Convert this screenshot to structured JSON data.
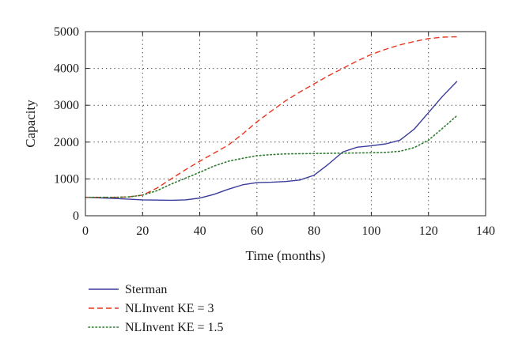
{
  "chart_data": {
    "type": "line",
    "xlabel": "Time (months)",
    "ylabel": "Capacity",
    "xlim": [
      0,
      140
    ],
    "ylim": [
      0,
      5000
    ],
    "xticks": [
      0,
      20,
      40,
      60,
      80,
      100,
      120,
      140
    ],
    "yticks": [
      0,
      1000,
      2000,
      3000,
      4000,
      5000
    ],
    "grid": true,
    "legend_position": "below",
    "series": [
      {
        "name": "Sterman",
        "color": "#3b3b9c",
        "dash": "solid",
        "x": [
          0,
          10,
          20,
          30,
          35,
          40,
          45,
          50,
          55,
          60,
          65,
          70,
          75,
          80,
          85,
          90,
          95,
          100,
          105,
          110,
          115,
          120,
          125,
          130
        ],
        "y": [
          500,
          470,
          430,
          420,
          430,
          480,
          580,
          720,
          840,
          900,
          910,
          930,
          970,
          1100,
          1400,
          1730,
          1860,
          1900,
          1950,
          2050,
          2350,
          2800,
          3250,
          3650
        ]
      },
      {
        "name": "NLInvent KE = 3",
        "color": "#e8361f",
        "dash": "dashed",
        "x": [
          0,
          10,
          15,
          20,
          25,
          30,
          35,
          40,
          45,
          50,
          55,
          60,
          65,
          70,
          75,
          80,
          85,
          90,
          95,
          100,
          105,
          110,
          115,
          120,
          125,
          130
        ],
        "y": [
          500,
          500,
          510,
          560,
          750,
          1000,
          1250,
          1480,
          1700,
          1920,
          2220,
          2550,
          2840,
          3120,
          3360,
          3580,
          3800,
          4000,
          4200,
          4380,
          4520,
          4640,
          4730,
          4810,
          4850,
          4860
        ]
      },
      {
        "name": "NLInvent KE = 1.5",
        "color": "#2e7a2e",
        "dash": "dotted",
        "x": [
          0,
          10,
          15,
          20,
          25,
          30,
          35,
          40,
          45,
          50,
          55,
          60,
          65,
          70,
          80,
          90,
          100,
          105,
          110,
          115,
          120,
          125,
          130
        ],
        "y": [
          500,
          500,
          510,
          560,
          680,
          860,
          1020,
          1180,
          1350,
          1480,
          1560,
          1630,
          1660,
          1680,
          1690,
          1700,
          1710,
          1720,
          1750,
          1850,
          2050,
          2380,
          2720
        ]
      }
    ]
  }
}
